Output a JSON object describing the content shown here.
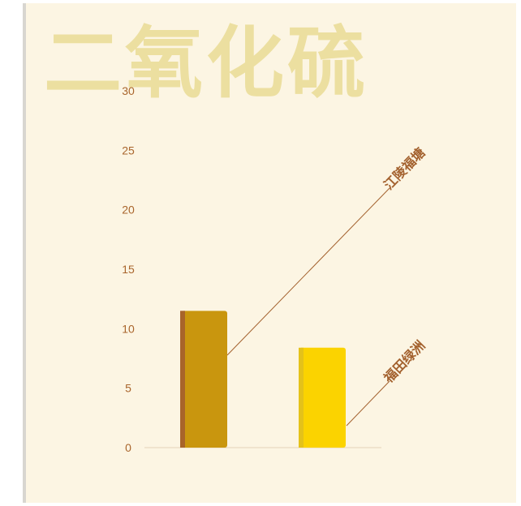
{
  "watermark_title": "二氧化硫",
  "chart_data": {
    "type": "bar",
    "title": "",
    "xlabel": "",
    "ylabel": "",
    "categories": [
      "江陵福塘",
      "福田绿洲"
    ],
    "values": [
      11.5,
      8.4
    ],
    "ylim": [
      0,
      30
    ],
    "yticks": [
      0,
      5,
      10,
      15,
      20,
      25,
      30
    ],
    "grid": false,
    "legend": "none",
    "bar_colors": [
      "#c9960e",
      "#fbd300"
    ],
    "bar_shade_colors": [
      "#a8642a",
      "#e4c21a"
    ],
    "label_color": "#a3612e"
  }
}
